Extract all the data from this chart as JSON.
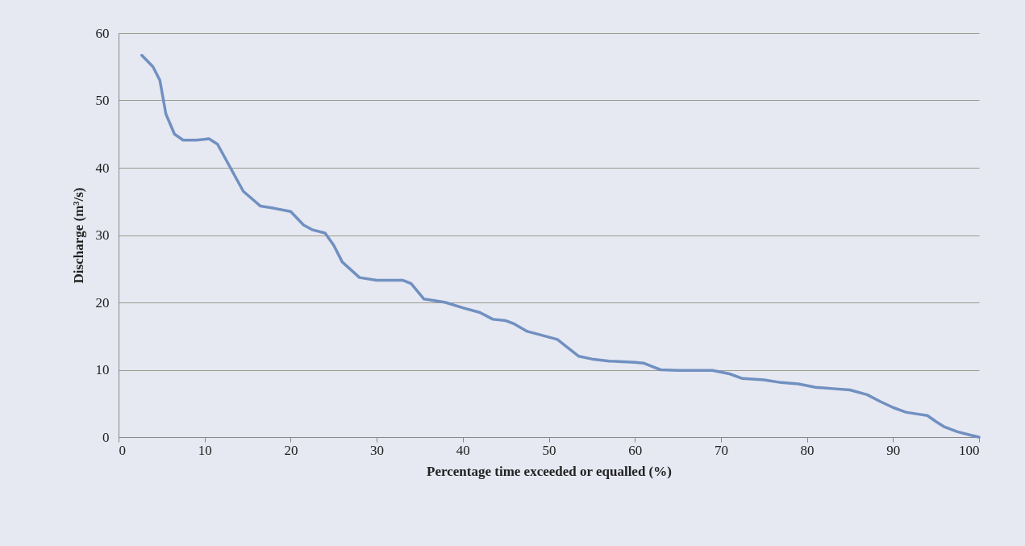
{
  "chart_data": {
    "type": "line",
    "xlabel": "Percentage time exceeded or equalled (%)",
    "ylabel": "Discharge (m³/s)",
    "x": [
      2.7,
      4,
      4.8,
      5.5,
      6.5,
      7.5,
      9,
      10.5,
      11.5,
      13,
      14.5,
      16.5,
      18,
      20,
      21.5,
      22.5,
      24,
      25,
      26,
      28,
      30,
      33,
      34,
      35.5,
      37,
      38,
      40,
      42,
      43.5,
      45,
      46,
      47.5,
      49,
      51,
      52,
      53.5,
      55,
      57,
      60,
      61,
      62,
      63,
      65,
      69,
      71,
      72.5,
      75,
      77,
      79,
      81,
      83,
      85,
      87,
      88.5,
      90,
      91.5,
      93,
      94,
      95,
      96,
      97.5,
      99,
      100
    ],
    "series": [
      {
        "color": "#7090c0",
        "values": [
          56.7,
          55,
          53,
          48,
          45,
          44.1,
          44.1,
          44.3,
          43.5,
          40,
          36.5,
          34.3,
          34,
          33.5,
          31.5,
          30.8,
          30.3,
          28.5,
          26,
          23.7,
          23.3,
          23.3,
          22.8,
          20.5,
          20.2,
          20,
          19.2,
          18.5,
          17.5,
          17.3,
          16.8,
          15.7,
          15.2,
          14.5,
          13.5,
          12,
          11.6,
          11.3,
          11.1,
          11,
          10.5,
          10,
          9.9,
          9.9,
          9.4,
          8.7,
          8.5,
          8.1,
          7.9,
          7.4,
          7.2,
          7,
          6.3,
          5.3,
          4.4,
          3.7,
          3.4,
          3.2,
          2.3,
          1.5,
          0.8,
          0.3,
          0
        ]
      }
    ],
    "xlim": [
      0,
      100
    ],
    "xticks": [
      0,
      10,
      20,
      30,
      40,
      50,
      60,
      70,
      80,
      90,
      100
    ],
    "ylim": [
      0,
      60
    ],
    "yticks": [
      0,
      10,
      20,
      30,
      40,
      50,
      60
    ],
    "grid": "y",
    "marker": "none",
    "line_style": "solid"
  }
}
